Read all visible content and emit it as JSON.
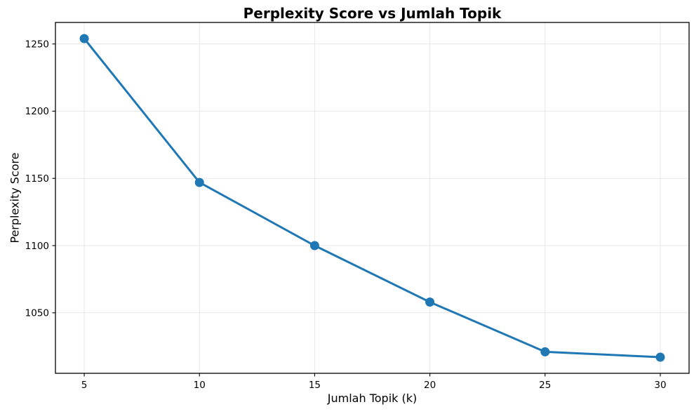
{
  "chart_data": {
    "type": "line",
    "title": "Perplexity Score vs Jumlah Topik",
    "xlabel": "Jumlah Topik (k)",
    "ylabel": "Perplexity Score",
    "x": [
      5,
      10,
      15,
      20,
      25,
      30
    ],
    "y": [
      1254,
      1147,
      1100,
      1058,
      1021,
      1017
    ],
    "x_tick_labels": [
      "5",
      "10",
      "15",
      "20",
      "25",
      "30"
    ],
    "x_tick_values": [
      5,
      10,
      15,
      20,
      25,
      30
    ],
    "y_tick_labels": [
      "1050",
      "1100",
      "1150",
      "1200",
      "1250"
    ],
    "y_tick_values": [
      1050,
      1100,
      1150,
      1200,
      1250
    ],
    "xlim": [
      3.75,
      31.25
    ],
    "ylim": [
      1005,
      1266
    ],
    "grid": true,
    "legend": "none",
    "colors": {
      "line": "#1f77b4",
      "marker": "#1f77b4",
      "grid": "#e7e7e7",
      "spine": "#000000",
      "tick_text": "#000000",
      "background": "#ffffff"
    },
    "line_width": 3,
    "marker": "circle",
    "marker_radius": 6.5,
    "tick_font_size": 13.5
  }
}
